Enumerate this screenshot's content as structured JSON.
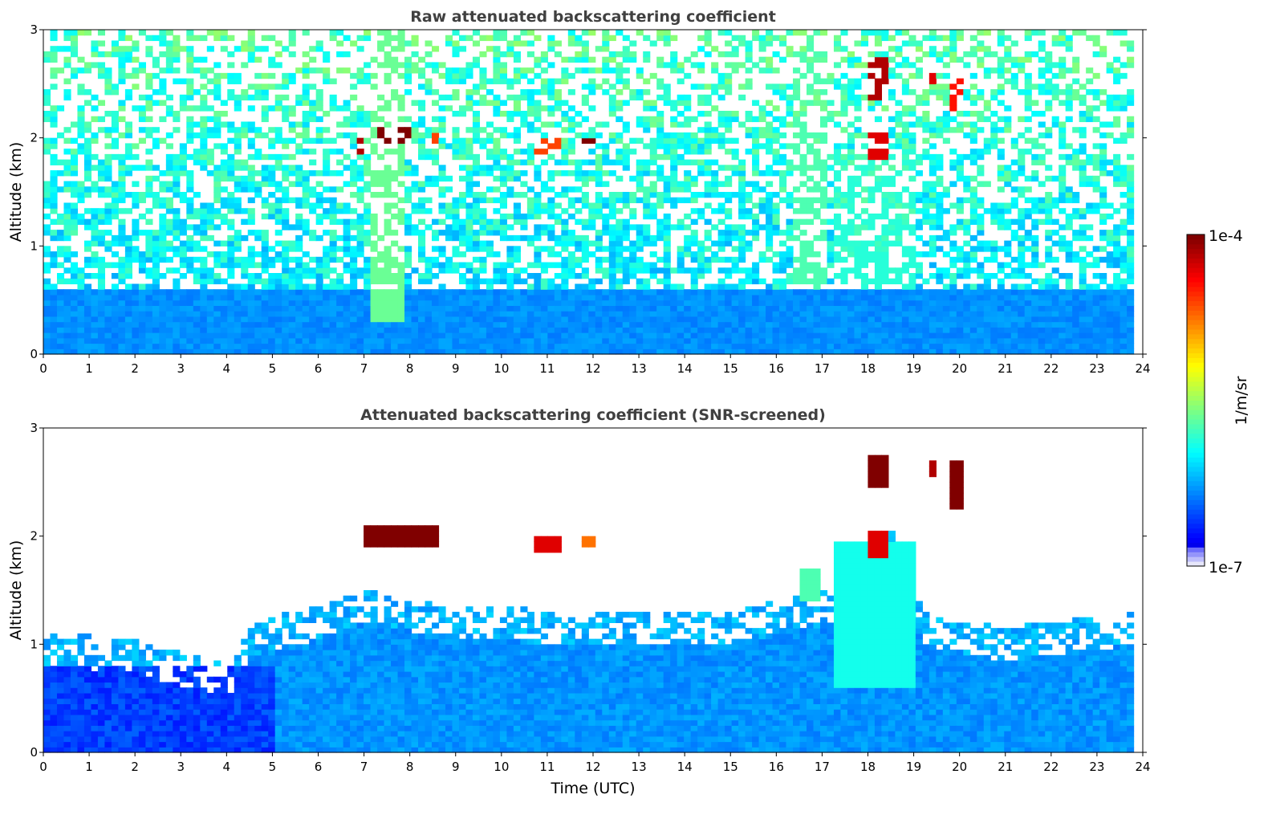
{
  "chart_data": [
    {
      "type": "heatmap",
      "title": "Raw attenuated backscattering coefficient",
      "xlabel": "",
      "ylabel": "Altitude (km)",
      "xlim": [
        0,
        24
      ],
      "ylim": [
        0,
        3
      ],
      "x_ticks": [
        "0",
        "1",
        "2",
        "3",
        "4",
        "5",
        "6",
        "7",
        "8",
        "9",
        "10",
        "11",
        "12",
        "13",
        "14",
        "15",
        "16",
        "17",
        "18",
        "19",
        "20",
        "21",
        "22",
        "23",
        "24"
      ],
      "y_ticks": [
        "0",
        "1",
        "2",
        "3"
      ],
      "data_extent_hours": [
        0,
        23.8
      ],
      "features": [
        {
          "kind": "boundary-layer",
          "x": [
            0,
            23.8
          ],
          "y_top": 0.6,
          "level": 0.22
        },
        {
          "kind": "cloud",
          "x": [
            7.25,
            8.0
          ],
          "y": [
            1.93,
            2.12
          ],
          "level": 1.0
        },
        {
          "kind": "cloud",
          "x": [
            6.88,
            6.95
          ],
          "y": [
            1.85,
            2.05
          ],
          "level": 0.95
        },
        {
          "kind": "cloud",
          "x": [
            8.5,
            8.62
          ],
          "y": [
            1.9,
            2.05
          ],
          "level": 0.8
        },
        {
          "kind": "cloud",
          "x": [
            10.7,
            11.3
          ],
          "y": [
            1.85,
            1.98
          ],
          "level": 0.8
        },
        {
          "kind": "cloud",
          "x": [
            11.8,
            12.0
          ],
          "y": [
            1.88,
            2.02
          ],
          "level": 1.0
        },
        {
          "kind": "cloud",
          "x": [
            17.95,
            18.45
          ],
          "y": [
            1.8,
            2.1
          ],
          "level": 0.9
        },
        {
          "kind": "cloud",
          "x": [
            18.0,
            18.5
          ],
          "y": [
            2.35,
            2.75
          ],
          "level": 0.95
        },
        {
          "kind": "cloud",
          "x": [
            19.3,
            19.5
          ],
          "y": [
            2.5,
            2.75
          ],
          "level": 0.9
        },
        {
          "kind": "cloud",
          "x": [
            19.8,
            20.1
          ],
          "y": [
            2.25,
            2.7
          ],
          "level": 0.85
        },
        {
          "kind": "aerosol-column",
          "x": [
            7.2,
            7.9
          ],
          "y": [
            0.3,
            3.0
          ],
          "level": 0.45
        },
        {
          "kind": "aerosol-column",
          "x": [
            16.3,
            17.1
          ],
          "y": [
            0.6,
            3.0
          ],
          "level": 0.42
        },
        {
          "kind": "aerosol-column",
          "x": [
            17.3,
            19.0
          ],
          "y": [
            0.6,
            1.9
          ],
          "level": 0.38
        }
      ]
    },
    {
      "type": "heatmap",
      "title": "Attenuated backscattering coefficient (SNR-screened)",
      "xlabel": "Time (UTC)",
      "ylabel": "Altitude (km)",
      "xlim": [
        0,
        24
      ],
      "ylim": [
        0,
        3
      ],
      "x_ticks": [
        "0",
        "1",
        "2",
        "3",
        "4",
        "5",
        "6",
        "7",
        "8",
        "9",
        "10",
        "11",
        "12",
        "13",
        "14",
        "15",
        "16",
        "17",
        "18",
        "19",
        "20",
        "21",
        "22",
        "23",
        "24"
      ],
      "y_ticks": [
        "0",
        "1",
        "2",
        "3"
      ],
      "data_extent_hours": [
        0,
        23.8
      ],
      "boundary_layer_top_km": [
        [
          0,
          1.1
        ],
        [
          2,
          1.05
        ],
        [
          4,
          0.8
        ],
        [
          4.5,
          1.2
        ],
        [
          6,
          1.35
        ],
        [
          7,
          1.5
        ],
        [
          9,
          1.35
        ],
        [
          12,
          1.3
        ],
        [
          15,
          1.3
        ],
        [
          17.2,
          1.5
        ],
        [
          17.5,
          1.8
        ],
        [
          18.5,
          2.1
        ],
        [
          19.2,
          1.3
        ],
        [
          21,
          1.15
        ],
        [
          23.8,
          1.3
        ]
      ],
      "features": [
        {
          "kind": "cloud",
          "x": [
            6.95,
            8.6
          ],
          "y": [
            1.88,
            2.1
          ],
          "level": 1.0
        },
        {
          "kind": "cloud",
          "x": [
            10.7,
            11.3
          ],
          "y": [
            1.85,
            1.98
          ],
          "level": 0.9
        },
        {
          "kind": "cloud",
          "x": [
            11.8,
            12.0
          ],
          "y": [
            1.9,
            2.02
          ],
          "level": 0.75
        },
        {
          "kind": "cloud",
          "x": [
            17.95,
            18.5
          ],
          "y": [
            1.8,
            2.05
          ],
          "level": 0.9
        },
        {
          "kind": "cloud",
          "x": [
            18.0,
            18.5
          ],
          "y": [
            2.45,
            2.75
          ],
          "level": 1.0
        },
        {
          "kind": "cloud",
          "x": [
            19.3,
            19.5
          ],
          "y": [
            2.55,
            2.72
          ],
          "level": 0.95
        },
        {
          "kind": "cloud",
          "x": [
            19.8,
            20.1
          ],
          "y": [
            2.25,
            2.68
          ],
          "level": 1.0
        },
        {
          "kind": "aerosol",
          "x": [
            16.5,
            17.0
          ],
          "y": [
            1.4,
            1.7
          ],
          "level": 0.42
        },
        {
          "kind": "aerosol",
          "x": [
            17.3,
            19.0
          ],
          "y": [
            0.6,
            1.95
          ],
          "level": 0.36
        }
      ]
    }
  ],
  "colorbar": {
    "label": "1/m/sr",
    "max_label": "1e-4",
    "min_label": "1e-7",
    "scale": "log",
    "range": [
      1e-07,
      0.0001
    ],
    "colormap": "jet"
  }
}
